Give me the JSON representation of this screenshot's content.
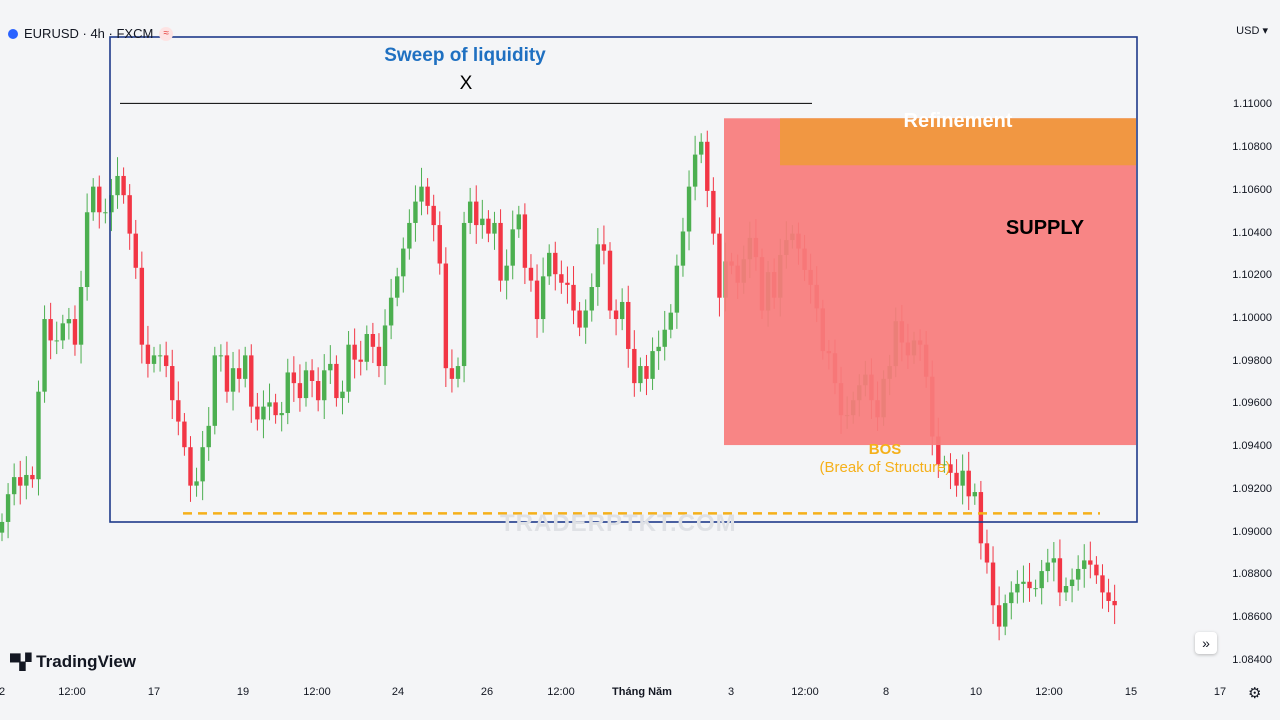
{
  "header": {
    "symbol_title": "EURUSD · 4h · FXCM",
    "currency": "USD",
    "currency_caret": "▾"
  },
  "branding": {
    "logo_mark": "▀▞",
    "logo_text": "TradingView",
    "watermark": "TRADERPTKT.COM"
  },
  "controls": {
    "scroll_right_icon": "»",
    "settings_icon": "⚙"
  },
  "chart_data": {
    "type": "candlestick",
    "y_axis": {
      "ticks": [
        "1.11000",
        "1.10800",
        "1.10600",
        "1.10400",
        "1.10200",
        "1.10000",
        "1.09800",
        "1.09600",
        "1.09400",
        "1.09200",
        "1.09000",
        "1.08800",
        "1.08600",
        "1.08400"
      ],
      "range": [
        1.0831,
        1.1133
      ]
    },
    "x_axis": {
      "ticks": [
        {
          "label": "2",
          "bold": false
        },
        {
          "label": "12:00",
          "bold": false
        },
        {
          "label": "17",
          "bold": false
        },
        {
          "label": "19",
          "bold": false
        },
        {
          "label": "12:00",
          "bold": false
        },
        {
          "label": "24",
          "bold": false
        },
        {
          "label": "26",
          "bold": false
        },
        {
          "label": "12:00",
          "bold": false
        },
        {
          "label": "Tháng Năm",
          "bold": true
        },
        {
          "label": "3",
          "bold": false
        },
        {
          "label": "12:00",
          "bold": false
        },
        {
          "label": "8",
          "bold": false
        },
        {
          "label": "10",
          "bold": false
        },
        {
          "label": "12:00",
          "bold": false
        },
        {
          "label": "15",
          "bold": false
        },
        {
          "label": "17",
          "bold": false
        }
      ]
    },
    "candles_close": [
      1.0905,
      1.0918,
      1.0926,
      1.0922,
      1.0927,
      1.0925,
      1.0966,
      1.1,
      1.099,
      1.099,
      1.0998,
      1.1,
      1.0988,
      1.1015,
      1.105,
      1.1062,
      1.105,
      1.105,
      1.1058,
      1.1067,
      1.1058,
      1.104,
      1.1024,
      1.0988,
      1.0979,
      1.0983,
      1.0983,
      1.0978,
      1.0962,
      1.0952,
      1.094,
      1.0922,
      1.0924,
      1.094,
      1.095,
      1.0983,
      1.0983,
      1.0966,
      1.0977,
      1.0972,
      1.0983,
      1.0959,
      1.0953,
      1.0959,
      1.0961,
      1.0955,
      1.0956,
      1.0975,
      1.097,
      1.0963,
      1.0976,
      1.0971,
      1.0962,
      1.0976,
      1.0979,
      1.0963,
      1.0966,
      1.0988,
      1.0981,
      1.098,
      1.0993,
      1.0987,
      1.0978,
      1.0997,
      1.101,
      1.102,
      1.1033,
      1.1045,
      1.1055,
      1.1062,
      1.1053,
      1.1044,
      1.1026,
      1.0977,
      1.0972,
      1.0978,
      1.1045,
      1.1055,
      1.1044,
      1.1047,
      1.104,
      1.1045,
      1.1018,
      1.1025,
      1.1042,
      1.1049,
      1.1024,
      1.1018,
      1.1,
      1.102,
      1.1031,
      1.1021,
      1.1017,
      1.1016,
      1.1004,
      1.0996,
      1.1004,
      1.1015,
      1.1035,
      1.1032,
      1.1004,
      1.1,
      1.1008,
      1.0986,
      1.097,
      1.0978,
      1.0972,
      1.0985,
      1.0987,
      1.0995,
      1.1003,
      1.1025,
      1.1041,
      1.1062,
      1.1077,
      1.1083,
      1.106,
      1.104,
      1.101,
      1.1027,
      1.1025,
      1.1017,
      1.1028,
      1.1038,
      1.1029,
      1.1004,
      1.1022,
      1.101,
      1.103,
      1.1037,
      1.104,
      1.1033,
      1.1023,
      1.1016,
      1.1005,
      1.0985,
      1.0984,
      1.097,
      1.0955,
      1.0955,
      1.0962,
      1.0969,
      1.0974,
      1.0962,
      1.0954,
      1.0972,
      1.0978,
      1.0999,
      1.0989,
      1.0983,
      1.099,
      1.0988,
      1.0973,
      1.0945,
      1.0932,
      1.0932,
      1.0928,
      1.0922,
      1.0929,
      1.0917,
      1.0919,
      1.0895,
      1.0886,
      1.0866,
      1.0856,
      1.0867,
      1.0872,
      1.0876,
      1.0877,
      1.0874,
      1.0874,
      1.0882,
      1.0886,
      1.0888,
      1.0872,
      1.0875,
      1.0878,
      1.0883,
      1.0887,
      1.0885,
      1.088,
      1.0872,
      1.0868,
      1.0866
    ],
    "annotations": {
      "sweep_title": "Sweep of liquidity",
      "sweep_marker": "X",
      "supply_label": "SUPPLY",
      "refinement_label": "Refinement",
      "bos_label": "BOS",
      "bos_sublabel": "(Break of Structure)",
      "liquidity_level": 1.1101,
      "bos_level": 1.0909,
      "supply_zone": [
        1.0941,
        1.1094
      ],
      "refinement_zone": [
        1.1072,
        1.1094
      ]
    },
    "colors": {
      "up": "#4caf50",
      "down": "#f23645",
      "sweep_box": "#1e3a8a",
      "sweep_title": "#1f70c1",
      "supply": "#f77c7c",
      "refinement": "#f0983e",
      "bos": "#f5b01a"
    }
  }
}
